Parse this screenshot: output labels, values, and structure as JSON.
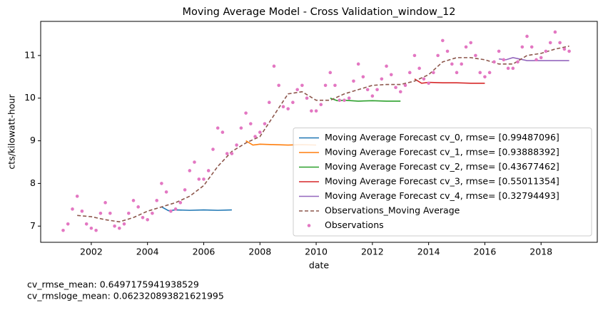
{
  "chart_data": {
    "type": "line",
    "title": "Moving Average Model - Cross Validation_window_12",
    "xlabel": "date",
    "ylabel": "cts/kilowatt-hour",
    "xlim": [
      2000.2,
      2020.0
    ],
    "ylim": [
      6.62,
      11.8
    ],
    "xticks": [
      2002,
      2004,
      2006,
      2008,
      2010,
      2012,
      2014,
      2016,
      2018
    ],
    "yticks": [
      7,
      8,
      9,
      10,
      11
    ],
    "legend": "lower right",
    "series": [
      {
        "name": "Moving Average Forecast cv_0, rmse= [0.99487096]",
        "color": "#1f77b4",
        "style": "solid",
        "x": [
          2004.5,
          2004.75,
          2005.0,
          2005.5,
          2006.0,
          2006.5,
          2007.0
        ],
        "values": [
          7.45,
          7.36,
          7.38,
          7.37,
          7.38,
          7.37,
          7.38
        ]
      },
      {
        "name": "Moving Average Forecast cv_1, rmse= [0.93888392]",
        "color": "#ff7f0e",
        "style": "solid",
        "x": [
          2007.5,
          2007.75,
          2008.0,
          2008.5,
          2009.0,
          2009.5,
          2010.0
        ],
        "values": [
          9.0,
          8.9,
          8.92,
          8.91,
          8.9,
          8.91,
          8.9
        ]
      },
      {
        "name": "Moving Average Forecast cv_2, rmse= [0.43677462]",
        "color": "#2ca02c",
        "style": "solid",
        "x": [
          2010.5,
          2010.75,
          2011.0,
          2011.5,
          2012.0,
          2012.5,
          2013.0
        ],
        "values": [
          10.0,
          9.94,
          9.95,
          9.93,
          9.94,
          9.93,
          9.93
        ]
      },
      {
        "name": "Moving Average Forecast cv_3, rmse= [0.55011354]",
        "color": "#d62728",
        "style": "solid",
        "x": [
          2013.5,
          2013.75,
          2014.0,
          2014.5,
          2015.0,
          2015.5,
          2016.0
        ],
        "values": [
          10.45,
          10.35,
          10.37,
          10.36,
          10.36,
          10.35,
          10.35
        ]
      },
      {
        "name": "Moving Average Forecast cv_4, rmse= [0.32794493]",
        "color": "#9467bd",
        "style": "solid",
        "x": [
          2016.5,
          2016.75,
          2017.0,
          2017.5,
          2018.0,
          2018.5,
          2019.0
        ],
        "values": [
          10.92,
          10.9,
          10.95,
          10.88,
          10.88,
          10.88,
          10.88
        ]
      },
      {
        "name": "Observations_Moving Average",
        "color": "#8c564b",
        "style": "dashed",
        "x": [
          2001.5,
          2002.0,
          2002.5,
          2003.0,
          2003.5,
          2004.0,
          2004.5,
          2005.0,
          2005.5,
          2006.0,
          2006.5,
          2007.0,
          2007.5,
          2008.0,
          2008.5,
          2009.0,
          2009.5,
          2010.0,
          2010.5,
          2011.0,
          2011.5,
          2012.0,
          2012.5,
          2013.0,
          2013.5,
          2014.0,
          2014.5,
          2015.0,
          2015.5,
          2016.0,
          2016.5,
          2017.0,
          2017.5,
          2018.0,
          2018.5,
          2019.0
        ],
        "values": [
          7.25,
          7.22,
          7.15,
          7.1,
          7.2,
          7.35,
          7.45,
          7.55,
          7.7,
          7.95,
          8.4,
          8.75,
          8.95,
          9.1,
          9.6,
          10.1,
          10.15,
          9.95,
          9.95,
          10.1,
          10.2,
          10.3,
          10.32,
          10.32,
          10.4,
          10.55,
          10.85,
          10.95,
          10.95,
          10.9,
          10.8,
          10.8,
          11.0,
          11.05,
          11.15,
          11.22
        ]
      },
      {
        "name": "Observations",
        "color": "#e377c2",
        "style": "markers",
        "x": [
          2001.0,
          2001.17,
          2001.33,
          2001.5,
          2001.67,
          2001.83,
          2002.0,
          2002.17,
          2002.33,
          2002.5,
          2002.67,
          2002.83,
          2003.0,
          2003.17,
          2003.33,
          2003.5,
          2003.67,
          2003.83,
          2004.0,
          2004.17,
          2004.33,
          2004.5,
          2004.67,
          2004.83,
          2005.0,
          2005.17,
          2005.33,
          2005.5,
          2005.67,
          2005.83,
          2006.0,
          2006.17,
          2006.33,
          2006.5,
          2006.67,
          2006.83,
          2007.0,
          2007.17,
          2007.33,
          2007.5,
          2007.67,
          2007.83,
          2008.0,
          2008.17,
          2008.33,
          2008.5,
          2008.67,
          2008.83,
          2009.0,
          2009.17,
          2009.33,
          2009.5,
          2009.67,
          2009.83,
          2010.0,
          2010.17,
          2010.33,
          2010.5,
          2010.67,
          2010.83,
          2011.0,
          2011.17,
          2011.33,
          2011.5,
          2011.67,
          2011.83,
          2012.0,
          2012.17,
          2012.33,
          2012.5,
          2012.67,
          2012.83,
          2013.0,
          2013.17,
          2013.33,
          2013.5,
          2013.67,
          2013.83,
          2014.0,
          2014.17,
          2014.33,
          2014.5,
          2014.67,
          2014.83,
          2015.0,
          2015.17,
          2015.33,
          2015.5,
          2015.67,
          2015.83,
          2016.0,
          2016.17,
          2016.33,
          2016.5,
          2016.67,
          2016.83,
          2017.0,
          2017.17,
          2017.33,
          2017.5,
          2017.67,
          2017.83,
          2018.0,
          2018.17,
          2018.33,
          2018.5,
          2018.67,
          2018.83,
          2019.0
        ],
        "values": [
          6.9,
          7.05,
          7.4,
          7.7,
          7.35,
          7.05,
          6.95,
          6.9,
          7.3,
          7.55,
          7.3,
          7.0,
          6.95,
          7.05,
          7.3,
          7.6,
          7.45,
          7.2,
          7.15,
          7.3,
          7.6,
          8.0,
          7.8,
          7.35,
          7.4,
          7.55,
          7.85,
          8.3,
          8.5,
          8.1,
          8.1,
          8.3,
          8.8,
          9.3,
          9.2,
          8.7,
          8.7,
          8.9,
          9.3,
          9.65,
          9.4,
          9.1,
          9.2,
          9.4,
          9.9,
          10.75,
          10.3,
          9.8,
          9.75,
          9.9,
          10.2,
          10.3,
          10.0,
          9.7,
          9.7,
          9.85,
          10.3,
          10.6,
          10.3,
          9.95,
          9.95,
          10.0,
          10.4,
          10.8,
          10.5,
          10.2,
          10.05,
          10.2,
          10.45,
          10.75,
          10.55,
          10.25,
          10.15,
          10.3,
          10.6,
          11.0,
          10.7,
          10.45,
          10.35,
          10.6,
          11.0,
          11.35,
          11.1,
          10.8,
          10.6,
          10.8,
          11.2,
          11.3,
          11.0,
          10.6,
          10.5,
          10.6,
          10.85,
          11.1,
          10.9,
          10.7,
          10.7,
          10.85,
          11.2,
          11.45,
          11.2,
          10.9,
          10.95,
          11.1,
          11.3,
          11.55,
          11.3,
          11.15,
          11.1
        ]
      }
    ],
    "annotations": [
      "cv_rmse_mean: 0.6497175941938529",
      "cv_rmsloge_mean: 0.062320893821621995"
    ]
  }
}
